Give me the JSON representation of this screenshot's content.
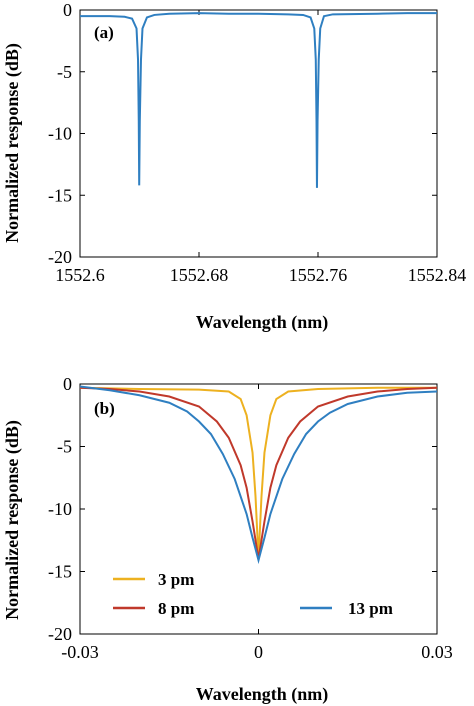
{
  "chart_data": [
    {
      "panel": "(a)",
      "type": "line",
      "xlabel": "Wavelength (nm)",
      "ylabel": "Normalized response (dB)",
      "xlim": [
        1552.6,
        1552.84
      ],
      "ylim": [
        -20,
        0
      ],
      "xticks": [
        1552.6,
        1552.68,
        1552.76,
        1552.84
      ],
      "xtick_labels": [
        "1552.6",
        "1552.68",
        "1552.76",
        "1552.84"
      ],
      "yticks": [
        0,
        -5,
        -10,
        -15,
        -20
      ],
      "ytick_labels": [
        "0",
        "-5",
        "-10",
        "-15",
        "-20"
      ],
      "grid": false,
      "series": [
        {
          "color": "#2f7fc1",
          "points": [
            [
              1552.6,
              -0.5
            ],
            [
              1552.62,
              -0.5
            ],
            [
              1552.63,
              -0.55
            ],
            [
              1552.635,
              -0.7
            ],
            [
              1552.638,
              -1.5
            ],
            [
              1552.639,
              -4
            ],
            [
              1552.6395,
              -9
            ],
            [
              1552.6398,
              -14.2
            ],
            [
              1552.6402,
              -9
            ],
            [
              1552.641,
              -4
            ],
            [
              1552.642,
              -1.5
            ],
            [
              1552.645,
              -0.6
            ],
            [
              1552.65,
              -0.4
            ],
            [
              1552.66,
              -0.3
            ],
            [
              1552.68,
              -0.25
            ],
            [
              1552.7,
              -0.3
            ],
            [
              1552.72,
              -0.3
            ],
            [
              1552.74,
              -0.35
            ],
            [
              1552.75,
              -0.4
            ],
            [
              1552.755,
              -0.6
            ],
            [
              1552.7575,
              -1.5
            ],
            [
              1552.7585,
              -4
            ],
            [
              1552.759,
              -9
            ],
            [
              1552.7593,
              -14.4
            ],
            [
              1552.7597,
              -9
            ],
            [
              1552.7605,
              -4
            ],
            [
              1552.7615,
              -1.5
            ],
            [
              1552.764,
              -0.5
            ],
            [
              1552.77,
              -0.35
            ],
            [
              1552.8,
              -0.3
            ],
            [
              1552.82,
              -0.25
            ],
            [
              1552.84,
              -0.25
            ]
          ]
        }
      ]
    },
    {
      "panel": "(b)",
      "type": "line",
      "xlabel": "Wavelength (nm)",
      "ylabel": "Normalized response (dB)",
      "xlim": [
        -0.03,
        0.03
      ],
      "ylim": [
        -20,
        0
      ],
      "xticks": [
        -0.03,
        0,
        0.03
      ],
      "xtick_labels": [
        "-0.03",
        "0",
        "0.03"
      ],
      "yticks": [
        0,
        -5,
        -10,
        -15,
        -20
      ],
      "ytick_labels": [
        "0",
        "-5",
        "-10",
        "-15",
        "-20"
      ],
      "grid": false,
      "legend_position": "bottom",
      "series": [
        {
          "name": "3 pm",
          "color": "#edb120",
          "points": [
            [
              -0.03,
              -0.3
            ],
            [
              -0.02,
              -0.4
            ],
            [
              -0.01,
              -0.45
            ],
            [
              -0.005,
              -0.6
            ],
            [
              -0.003,
              -1.2
            ],
            [
              -0.002,
              -2.5
            ],
            [
              -0.001,
              -5.5
            ],
            [
              -0.0005,
              -9
            ],
            [
              0,
              -14
            ],
            [
              0.0005,
              -9
            ],
            [
              0.001,
              -5.5
            ],
            [
              0.002,
              -2.5
            ],
            [
              0.003,
              -1.2
            ],
            [
              0.005,
              -0.6
            ],
            [
              0.01,
              -0.4
            ],
            [
              0.02,
              -0.3
            ],
            [
              0.03,
              -0.3
            ]
          ]
        },
        {
          "name": "8 pm",
          "color": "#c0392b",
          "points": [
            [
              -0.03,
              -0.3
            ],
            [
              -0.025,
              -0.4
            ],
            [
              -0.02,
              -0.6
            ],
            [
              -0.015,
              -1.0
            ],
            [
              -0.01,
              -1.8
            ],
            [
              -0.007,
              -3.0
            ],
            [
              -0.005,
              -4.3
            ],
            [
              -0.003,
              -6.5
            ],
            [
              -0.002,
              -8.3
            ],
            [
              -0.001,
              -11
            ],
            [
              0,
              -14
            ],
            [
              0.001,
              -11
            ],
            [
              0.002,
              -8.3
            ],
            [
              0.003,
              -6.5
            ],
            [
              0.005,
              -4.3
            ],
            [
              0.007,
              -3.0
            ],
            [
              0.01,
              -1.8
            ],
            [
              0.015,
              -1.0
            ],
            [
              0.02,
              -0.6
            ],
            [
              0.025,
              -0.4
            ],
            [
              0.03,
              -0.3
            ]
          ]
        },
        {
          "name": "13 pm",
          "color": "#2f7fc1",
          "points": [
            [
              -0.03,
              -0.2
            ],
            [
              -0.025,
              -0.5
            ],
            [
              -0.02,
              -0.9
            ],
            [
              -0.015,
              -1.5
            ],
            [
              -0.012,
              -2.2
            ],
            [
              -0.01,
              -3.0
            ],
            [
              -0.008,
              -4.0
            ],
            [
              -0.006,
              -5.6
            ],
            [
              -0.004,
              -7.6
            ],
            [
              -0.002,
              -10.4
            ],
            [
              -0.001,
              -12.3
            ],
            [
              0,
              -14.1
            ],
            [
              0.001,
              -12.3
            ],
            [
              0.002,
              -10.4
            ],
            [
              0.004,
              -7.6
            ],
            [
              0.006,
              -5.6
            ],
            [
              0.008,
              -4.0
            ],
            [
              0.01,
              -3.0
            ],
            [
              0.012,
              -2.3
            ],
            [
              0.015,
              -1.6
            ],
            [
              0.02,
              -1.0
            ],
            [
              0.025,
              -0.7
            ],
            [
              0.03,
              -0.6
            ]
          ]
        }
      ]
    }
  ]
}
